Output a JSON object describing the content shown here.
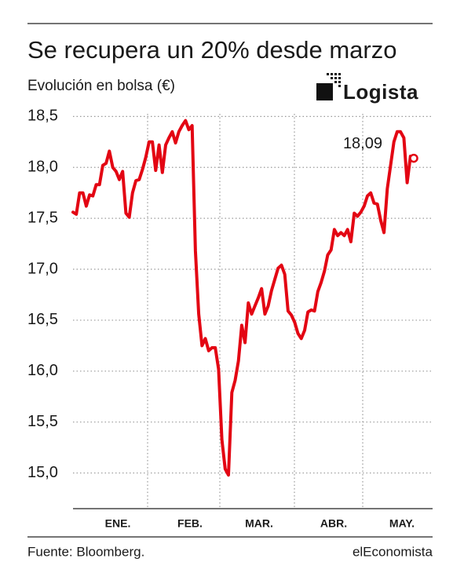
{
  "chart_data": {
    "type": "line",
    "title": "Se recupera un 20% desde marzo",
    "subtitle": "Evolución en bolsa (€)",
    "brand": "Logista",
    "source": "Fuente: Bloomberg.",
    "publisher": "elEconomista",
    "annotation": "18,09",
    "month_labels": [
      "ENE.",
      "FEB.",
      "MAR.",
      "ABR.",
      "MAY."
    ],
    "ylim": [
      14.65,
      18.68
    ],
    "yticks": [
      {
        "value": 15.0,
        "label": "15,0"
      },
      {
        "value": 15.5,
        "label": "15,5"
      },
      {
        "value": 16.0,
        "label": "16,0"
      },
      {
        "value": 16.5,
        "label": "16,5"
      },
      {
        "value": 17.0,
        "label": "17,0"
      },
      {
        "value": 17.5,
        "label": "17,5"
      },
      {
        "value": 18.0,
        "label": "18,0"
      },
      {
        "value": 18.5,
        "label": "18,5"
      }
    ],
    "grid": true,
    "series": [
      {
        "color": "#e30613",
        "values": [
          17.56,
          17.54,
          17.75,
          17.75,
          17.62,
          17.73,
          17.72,
          17.83,
          17.83,
          18.02,
          18.04,
          18.16,
          18.0,
          17.96,
          17.88,
          17.96,
          17.55,
          17.51,
          17.75,
          17.87,
          17.88,
          17.98,
          18.1,
          18.25,
          18.25,
          17.97,
          18.22,
          17.95,
          18.22,
          18.29,
          18.35,
          18.24,
          18.35,
          18.41,
          18.46,
          18.37,
          18.41,
          17.18,
          16.56,
          16.25,
          16.32,
          16.2,
          16.23,
          16.23,
          16.02,
          15.33,
          15.04,
          14.98,
          15.79,
          15.91,
          16.1,
          16.45,
          16.28,
          16.67,
          16.56,
          16.64,
          16.72,
          16.81,
          16.56,
          16.64,
          16.79,
          16.9,
          17.01,
          17.04,
          16.95,
          16.59,
          16.55,
          16.48,
          16.37,
          16.32,
          16.4,
          16.58,
          16.6,
          16.59,
          16.78,
          16.87,
          16.98,
          17.14,
          17.19,
          17.39,
          17.33,
          17.36,
          17.33,
          17.39,
          17.27,
          17.55,
          17.52,
          17.56,
          17.62,
          17.72,
          17.75,
          17.65,
          17.64,
          17.48,
          17.36,
          17.79,
          18.02,
          18.25,
          18.35,
          18.35,
          18.29,
          17.85,
          18.11,
          18.09
        ]
      }
    ]
  }
}
